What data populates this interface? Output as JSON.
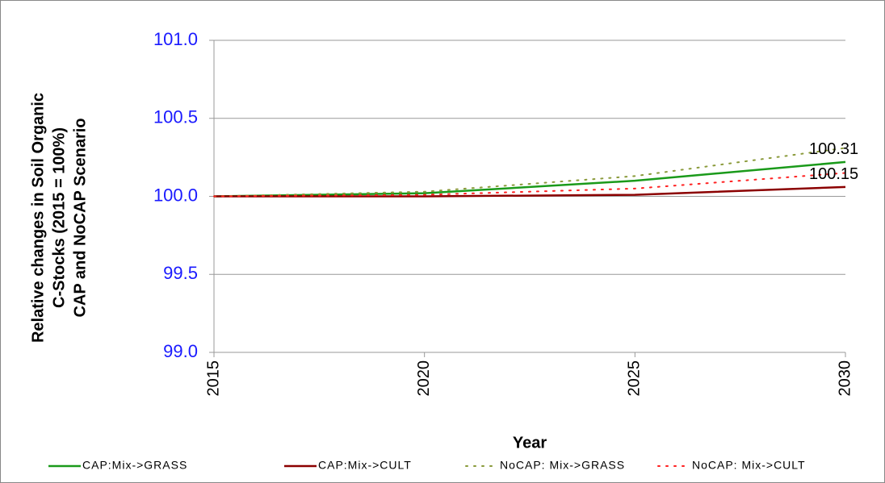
{
  "chart_data": {
    "type": "line",
    "x_label": "Year",
    "y_label": [
      "Relative changes in Soil Organic",
      "C-Stocks (2015 = 100%)",
      "CAP and NoCAP Scenario"
    ],
    "x": [
      2015,
      2020,
      2025,
      2030
    ],
    "xlim": [
      2015,
      2030
    ],
    "xticks": [
      2015,
      2020,
      2025,
      2030
    ],
    "ylim": [
      99,
      101
    ],
    "yticks": [
      {
        "value": 99,
        "label": "99.0"
      },
      {
        "value": 99.5,
        "label": "99.5"
      },
      {
        "value": 100,
        "label": "100.0"
      },
      {
        "value": 100.5,
        "label": "100.5"
      },
      {
        "value": 101,
        "label": "101.0"
      }
    ],
    "grid": true,
    "legend": "bottom",
    "series": [
      {
        "name": "CAP:Mix->GRASS",
        "color": "#1a9a1a",
        "style": "solid",
        "values": [
          100.0,
          100.02,
          100.1,
          100.22
        ]
      },
      {
        "name": "CAP:Mix->CULT",
        "color": "#8b0000",
        "style": "solid",
        "values": [
          100.0,
          100.0,
          100.01,
          100.06
        ]
      },
      {
        "name": "NoCAP: Mix->GRASS",
        "color": "#8a9a3a",
        "style": "dotted",
        "values": [
          100.0,
          100.03,
          100.13,
          100.31
        ]
      },
      {
        "name": "NoCAP: Mix->CULT",
        "color": "#ff2020",
        "style": "dotted",
        "values": [
          100.0,
          100.01,
          100.05,
          100.15
        ]
      }
    ],
    "labeled_points": [
      {
        "series": 2,
        "index": 3
      },
      {
        "series": 3,
        "index": 3
      }
    ]
  }
}
